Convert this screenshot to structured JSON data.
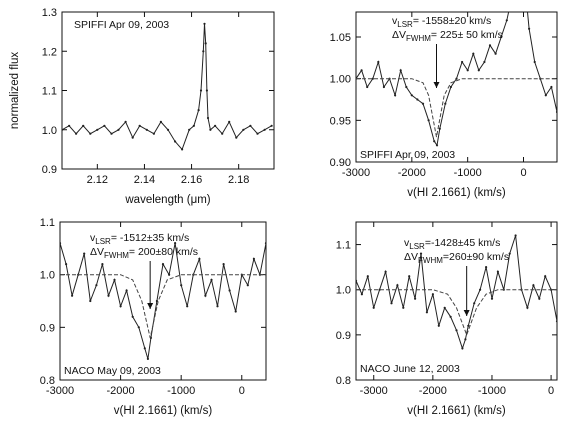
{
  "chart_data": [
    {
      "type": "line",
      "panel": "top-left",
      "ylabel": "normalized flux",
      "xlabel": "wavelength (μm)",
      "xlim": [
        2.105,
        2.195
      ],
      "ylim": [
        0.9,
        1.3
      ],
      "xticks": [
        "2.12",
        "2.14",
        "2.16",
        "2.18"
      ],
      "yticks": [
        "0.9",
        "1.0",
        "1.1",
        "1.2",
        "1.3"
      ],
      "annotation": "SPIFFI Apr 09, 2003",
      "series": [
        {
          "x": [
            2.105,
            2.108,
            2.111,
            2.114,
            2.117,
            2.12,
            2.123,
            2.126,
            2.129,
            2.132,
            2.135,
            2.138,
            2.141,
            2.144,
            2.147,
            2.15,
            2.153,
            2.156,
            2.159,
            2.161,
            2.163,
            2.164,
            2.165,
            2.1655,
            2.166,
            2.1665,
            2.167,
            2.168,
            2.17,
            2.173,
            2.176,
            2.179,
            2.182,
            2.185,
            2.188,
            2.191,
            2.194
          ],
          "values": [
            1.0,
            1.01,
            0.99,
            1.01,
            0.99,
            1.0,
            1.01,
            0.99,
            1.0,
            1.02,
            0.98,
            1.01,
            1.0,
            0.99,
            1.02,
            1.0,
            0.97,
            0.95,
            1.0,
            1.01,
            1.05,
            1.1,
            1.2,
            1.27,
            1.22,
            1.1,
            1.03,
            1.0,
            1.01,
            0.99,
            1.02,
            0.98,
            1.0,
            1.01,
            0.99,
            1.0,
            1.01
          ]
        }
      ]
    },
    {
      "type": "line",
      "panel": "top-right",
      "xlabel": "v(HI 2.1661) (km/s)",
      "xlim": [
        -3000,
        600
      ],
      "ylim": [
        0.9,
        1.08
      ],
      "xticks": [
        "-3000",
        "-2000",
        "-1000",
        "0"
      ],
      "yticks": [
        "0.90",
        "0.95",
        "1.00",
        "1.05"
      ],
      "annotation": "SPIFFI Apr 09, 2003",
      "label_lsr": "v_LSR= -1558±20 km/s",
      "label_fwhm": "ΔV_FWHM= 225± 50 km/s",
      "arrow_x": -1558,
      "series": [
        {
          "name": "data",
          "x": [
            -3000,
            -2900,
            -2800,
            -2700,
            -2600,
            -2500,
            -2400,
            -2300,
            -2200,
            -2100,
            -2000,
            -1900,
            -1800,
            -1700,
            -1600,
            -1550,
            -1500,
            -1400,
            -1300,
            -1200,
            -1100,
            -1000,
            -900,
            -800,
            -700,
            -600,
            -500,
            -400,
            -300,
            -200,
            -100,
            0,
            100,
            200,
            300,
            400,
            500,
            600
          ],
          "values": [
            1.0,
            1.01,
            0.99,
            1.0,
            1.02,
            0.99,
            1.0,
            0.98,
            1.01,
            0.99,
            0.98,
            0.975,
            0.97,
            0.95,
            0.925,
            0.92,
            0.94,
            0.97,
            0.99,
            1.0,
            1.02,
            1.01,
            1.03,
            1.01,
            1.02,
            1.04,
            1.03,
            1.05,
            1.07,
            1.1,
            1.13,
            1.13,
            1.06,
            1.02,
            1.0,
            0.98,
            0.99,
            0.96
          ]
        },
        {
          "name": "fit",
          "x": [
            -3000,
            -2000,
            -1800,
            -1700,
            -1558,
            -1420,
            -1300,
            -1100,
            0,
            600
          ],
          "values": [
            1.0,
            1.0,
            0.995,
            0.98,
            0.93,
            0.98,
            0.995,
            1.0,
            1.0,
            1.0
          ]
        }
      ]
    },
    {
      "type": "line",
      "panel": "bottom-left",
      "xlabel": "v(HI 2.1661)  (km/s)",
      "xlim": [
        -3000,
        400
      ],
      "ylim": [
        0.8,
        1.1
      ],
      "xticks": [
        "-3000",
        "-2000",
        "-1000",
        "0"
      ],
      "yticks": [
        "0.8",
        "0.9",
        "1.0",
        "1.1"
      ],
      "annotation": "NACO May 09, 2003",
      "label_lsr": "v_LSR= -1512±35 km/s",
      "label_fwhm": "ΔV_FWHM= 200±80 km/s",
      "arrow_x": -1512,
      "series": [
        {
          "name": "data",
          "x": [
            -3000,
            -2900,
            -2800,
            -2700,
            -2600,
            -2500,
            -2400,
            -2300,
            -2200,
            -2100,
            -2000,
            -1900,
            -1800,
            -1700,
            -1600,
            -1550,
            -1500,
            -1400,
            -1300,
            -1200,
            -1100,
            -1000,
            -900,
            -800,
            -700,
            -600,
            -500,
            -400,
            -300,
            -200,
            -100,
            0,
            100,
            200,
            300,
            400
          ],
          "values": [
            1.06,
            1.02,
            0.96,
            1.0,
            1.04,
            0.95,
            0.98,
            1.02,
            0.96,
            0.99,
            0.94,
            0.97,
            0.92,
            0.9,
            0.86,
            0.84,
            0.88,
            0.95,
            1.02,
            1.0,
            1.06,
            0.98,
            0.94,
            1.0,
            1.03,
            0.96,
            0.99,
            0.94,
            1.02,
            0.97,
            0.93,
            1.0,
            0.98,
            1.03,
            1.0,
            1.06
          ]
        },
        {
          "name": "fit",
          "x": [
            -3000,
            -2000,
            -1800,
            -1650,
            -1512,
            -1380,
            -1230,
            -1000,
            0,
            400
          ],
          "values": [
            1.0,
            1.0,
            0.99,
            0.95,
            0.88,
            0.95,
            0.99,
            1.0,
            1.0,
            1.0
          ]
        }
      ]
    },
    {
      "type": "line",
      "panel": "bottom-right",
      "xlabel": "v(HI 2.1661)  (km/s)",
      "xlim": [
        -3300,
        100
      ],
      "ylim": [
        0.8,
        1.15
      ],
      "xticks": [
        "-3000",
        "-2000",
        "-1000",
        "0"
      ],
      "yticks": [
        "0.8",
        "0.9",
        "1.0",
        "1.1"
      ],
      "annotation": "NACO June 12, 2003",
      "label_lsr": "v_LSR=-1428±45 km/s",
      "label_fwhm": "ΔV_FWHM=260±90 km/s",
      "arrow_x": -1428,
      "series": [
        {
          "name": "data",
          "x": [
            -3300,
            -3200,
            -3100,
            -3000,
            -2900,
            -2800,
            -2700,
            -2600,
            -2500,
            -2400,
            -2300,
            -2200,
            -2100,
            -2000,
            -1900,
            -1800,
            -1700,
            -1600,
            -1500,
            -1450,
            -1400,
            -1300,
            -1200,
            -1100,
            -1000,
            -900,
            -800,
            -700,
            -600,
            -500,
            -400,
            -300,
            -200,
            -100,
            0,
            100
          ],
          "values": [
            1.02,
            0.99,
            1.03,
            0.96,
            1.0,
            1.04,
            0.97,
            1.01,
            0.96,
            1.03,
            0.98,
            1.08,
            0.95,
            0.99,
            0.92,
            0.96,
            0.94,
            0.91,
            0.87,
            0.89,
            0.92,
            0.97,
            1.0,
            1.05,
            0.98,
            1.04,
            1.0,
            1.08,
            1.12,
            1.0,
            0.96,
            1.01,
            0.98,
            1.03,
            1.0,
            0.93
          ]
        },
        {
          "name": "fit",
          "x": [
            -3300,
            -2000,
            -1750,
            -1600,
            -1428,
            -1260,
            -1100,
            -900,
            0,
            100
          ],
          "values": [
            1.0,
            1.0,
            0.99,
            0.96,
            0.9,
            0.96,
            0.99,
            1.0,
            1.0,
            1.0
          ]
        }
      ]
    }
  ]
}
